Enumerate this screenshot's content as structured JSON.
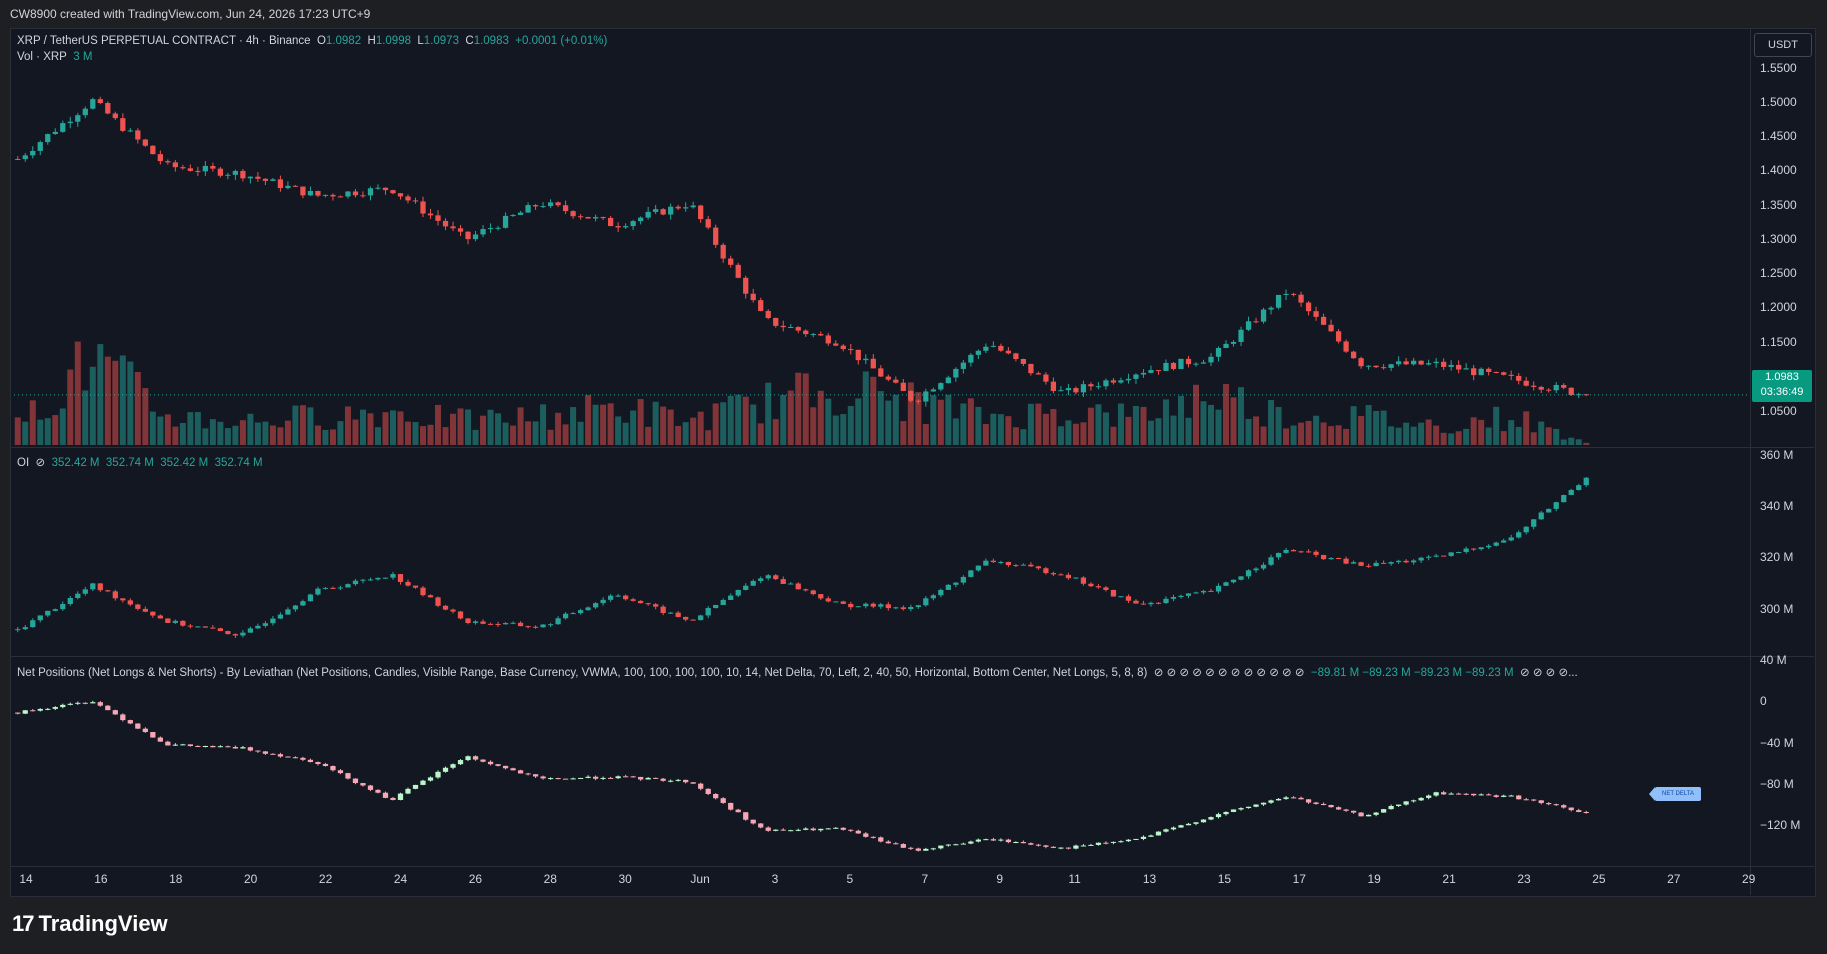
{
  "header": {
    "text": "CW8900 created with TradingView.com, Jun 24, 2026 17:23 UTC+9"
  },
  "legend": {
    "symbol": "XRP / TetherUS PERPETUAL CONTRACT · 4h · Binance",
    "o_label": "O",
    "o_value": "1.0982",
    "h_label": "H",
    "h_value": "1.0998",
    "l_label": "L",
    "l_value": "1.0973",
    "c_label": "C",
    "c_value": "1.0983",
    "change": "+0.0001 (+0.01%)",
    "vol_label": "Vol · XRP",
    "vol_value": "3 M",
    "oi_label": "OI",
    "oi_icon": "⊘",
    "oi_values": [
      "352.42 M",
      "352.74 M",
      "352.42 M",
      "352.74 M"
    ],
    "net_label": "Net Positions (Net Longs & Net Shorts) - By Leviathan (Net Positions, Candles, Visible Range, Base Currency, VWMA, 100, 100, 100, 100, 10, 14, Net Delta, 70, Left, 2, 40, 50, Horizontal, Bottom Center, Net Longs, 5, 8, 8)",
    "net_icons_a": "⊘ ⊘ ⊘ ⊘ ⊘ ⊘ ⊘ ⊘ ⊘ ⊘ ⊘ ⊘",
    "net_values": "−89.81 M  −89.23 M  −89.23 M  −89.23 M",
    "net_icons_b": "⊘ ⊘ ⊘ ⊘..."
  },
  "axis": {
    "currency": "USDT",
    "price_ticks": [
      "1.5500",
      "1.5000",
      "1.4500",
      "1.4000",
      "1.3500",
      "1.3000",
      "1.2500",
      "1.2000",
      "1.1500",
      "1.0500"
    ],
    "oi_ticks": [
      "360 M",
      "340 M",
      "320 M",
      "300 M"
    ],
    "net_ticks": [
      "40 M",
      "0",
      "−40 M",
      "−80 M",
      "−120 M"
    ],
    "last_price": "1.0983",
    "countdown": "03:36:49",
    "time_ticks": [
      "14",
      "16",
      "18",
      "20",
      "22",
      "24",
      "26",
      "28",
      "30",
      "Jun",
      "3",
      "5",
      "7",
      "9",
      "11",
      "13",
      "15",
      "17",
      "19",
      "21",
      "23",
      "25",
      "27",
      "29"
    ]
  },
  "net_delta_label": "NET DELTA",
  "brand": {
    "logo": "17",
    "name": "TradingView"
  },
  "colors": {
    "up": "#26a69a",
    "down": "#ef5350",
    "bg": "#131722",
    "net_up": "#b9f6ca",
    "net_down": "#f7a6b4"
  },
  "chart_data": [
    {
      "type": "candlestick",
      "title": "XRP / TetherUS PERPETUAL CONTRACT · 4h · Binance",
      "ylim": [
        1.05,
        1.55
      ],
      "x": [
        "May 14",
        "May 16",
        "May 18",
        "May 20",
        "May 22",
        "May 24",
        "May 26",
        "May 28",
        "May 30",
        "Jun 1",
        "Jun 3",
        "Jun 5",
        "Jun 7",
        "Jun 9",
        "Jun 11",
        "Jun 13",
        "Jun 15",
        "Jun 17",
        "Jun 19",
        "Jun 21",
        "Jun 23",
        "Jun 24"
      ],
      "close": [
        1.42,
        1.5,
        1.41,
        1.4,
        1.37,
        1.38,
        1.31,
        1.36,
        1.33,
        1.36,
        1.2,
        1.17,
        1.09,
        1.17,
        1.1,
        1.13,
        1.15,
        1.24,
        1.14,
        1.14,
        1.12,
        1.0983
      ]
    },
    {
      "type": "bar",
      "title": "Vol · XRP",
      "x": [
        "May 14",
        "May 16",
        "May 18",
        "May 20",
        "May 22",
        "May 24",
        "May 26",
        "May 28",
        "May 30",
        "Jun 1",
        "Jun 3",
        "Jun 5",
        "Jun 7",
        "Jun 9",
        "Jun 11",
        "Jun 13",
        "Jun 15",
        "Jun 17",
        "Jun 19",
        "Jun 21",
        "Jun 23",
        "Jun 24"
      ],
      "values": [
        20,
        90,
        30,
        25,
        30,
        35,
        25,
        30,
        40,
        25,
        45,
        60,
        45,
        30,
        35,
        30,
        55,
        30,
        30,
        20,
        30,
        3
      ]
    },
    {
      "type": "candlestick",
      "title": "OI",
      "ylim": [
        290,
        360
      ],
      "x": [
        "May 14",
        "May 16",
        "May 18",
        "May 20",
        "May 22",
        "May 24",
        "May 26",
        "May 28",
        "May 30",
        "Jun 1",
        "Jun 3",
        "Jun 5",
        "Jun 7",
        "Jun 9",
        "Jun 11",
        "Jun 13",
        "Jun 15",
        "Jun 17",
        "Jun 19",
        "Jun 21",
        "Jun 23",
        "Jun 24"
      ],
      "close": [
        298,
        314,
        301,
        296,
        312,
        318,
        301,
        299,
        311,
        301,
        318,
        307,
        306,
        323,
        318,
        307,
        312,
        327,
        321,
        324,
        331,
        352.74
      ]
    },
    {
      "type": "candlestick",
      "title": "Net Positions (Net Longs & Net Shorts)",
      "ylim": [
        -130,
        40
      ],
      "x": [
        "May 14",
        "May 16",
        "May 18",
        "May 20",
        "May 22",
        "May 24",
        "May 26",
        "May 28",
        "May 30",
        "Jun 1",
        "Jun 3",
        "Jun 5",
        "Jun 7",
        "Jun 9",
        "Jun 11",
        "Jun 13",
        "Jun 15",
        "Jun 17",
        "Jun 19",
        "Jun 21",
        "Jun 23",
        "Jun 24"
      ],
      "close": [
        -2,
        8,
        -30,
        -33,
        -45,
        -78,
        -40,
        -60,
        -58,
        -62,
        -105,
        -103,
        -122,
        -112,
        -120,
        -112,
        -92,
        -75,
        -92,
        -72,
        -75,
        -89.23
      ]
    }
  ]
}
